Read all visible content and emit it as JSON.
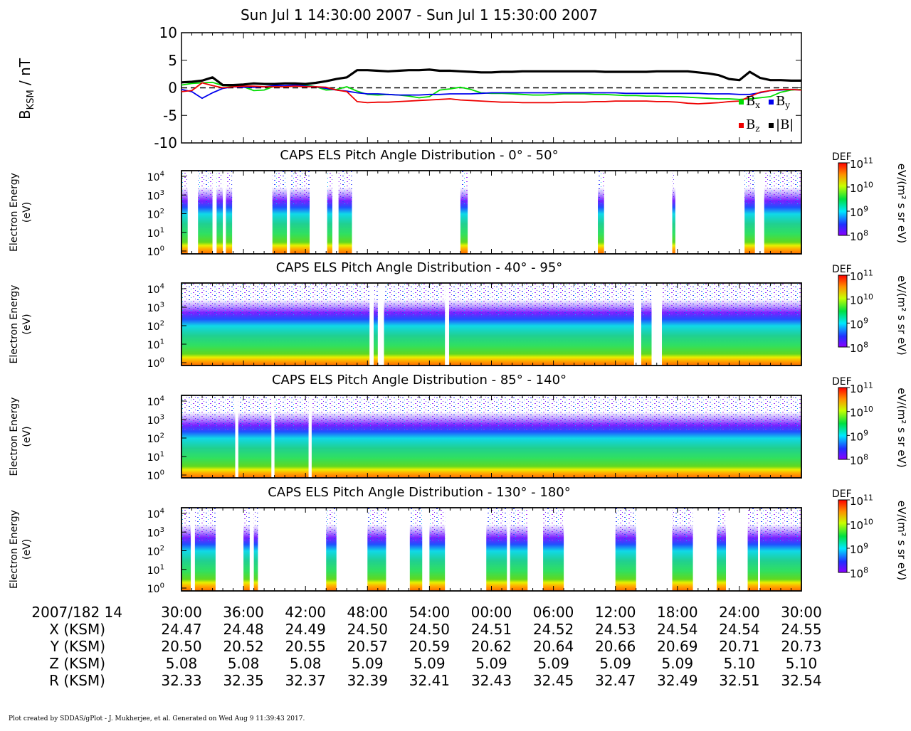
{
  "title": "Sun Jul 1 14:30:00 2007 - Sun Jul 1 15:30:00 2007",
  "footer": "Plot created by SDDAS/gPlot - J. Mukherjee, et al.  Generated on Wed Aug 9 11:39:43 2017.",
  "colors": {
    "bx": "#00dd00",
    "by": "#0000ee",
    "bz": "#ee0000",
    "bmag": "#000000"
  },
  "chart_data": [
    {
      "type": "line",
      "ylabel_main": "B",
      "ylabel_sub": "KSM",
      "ylabel_unit": " / nT",
      "ylim": [
        -10,
        10
      ],
      "yticks": [
        "10",
        "5",
        "0",
        "-5",
        "-10"
      ],
      "ytick_values": [
        10,
        5,
        0,
        -5,
        -10
      ],
      "x_minutes": [
        0,
        1,
        2,
        3,
        4,
        5,
        6,
        7,
        8,
        9,
        10,
        11,
        12,
        13,
        14,
        15,
        16,
        17,
        18,
        19,
        20,
        21,
        22,
        23,
        24,
        25,
        26,
        27,
        28,
        29,
        30,
        31,
        32,
        33,
        34,
        35,
        36,
        37,
        38,
        39,
        40,
        41,
        42,
        43,
        44,
        45,
        46,
        47,
        48,
        49,
        50,
        51,
        52,
        53,
        54,
        55,
        56,
        57,
        58,
        59,
        60
      ],
      "series": [
        {
          "name": "B",
          "sub": "x",
          "values": [
            0.5,
            0.8,
            0.9,
            1.0,
            0.4,
            0.3,
            0.2,
            -0.5,
            -0.4,
            0.3,
            0.3,
            0.6,
            0.5,
            0.2,
            -0.4,
            -0.3,
            0.2,
            -0.6,
            -1.2,
            -1.3,
            -1.2,
            -1.3,
            -1.5,
            -1.8,
            -1.6,
            -0.4,
            -0.2,
            0.1,
            -0.3,
            -0.9,
            -1.0,
            -1.0,
            -1.1,
            -1.2,
            -1.3,
            -1.3,
            -1.2,
            -1.1,
            -1.1,
            -1.1,
            -1.2,
            -1.2,
            -1.3,
            -1.4,
            -1.4,
            -1.5,
            -1.5,
            -1.6,
            -1.6,
            -1.7,
            -1.8,
            -1.9,
            -2.0,
            -2.0,
            -2.1,
            -2.0,
            -1.8,
            -1.6,
            -0.8,
            -0.4,
            -0.3
          ]
        },
        {
          "name": "B",
          "sub": "y",
          "values": [
            -0.3,
            -0.7,
            -1.9,
            -0.9,
            -0.1,
            0.2,
            0.1,
            0.1,
            0.2,
            0.4,
            0.4,
            0.5,
            0.3,
            0.2,
            -0.1,
            -0.4,
            -0.6,
            -0.9,
            -1.1,
            -1.1,
            -1.2,
            -1.3,
            -1.3,
            -1.3,
            -1.2,
            -1.2,
            -1.1,
            -1.1,
            -1.1,
            -1.0,
            -0.9,
            -0.9,
            -0.9,
            -0.9,
            -0.9,
            -0.9,
            -0.9,
            -0.9,
            -0.9,
            -0.9,
            -0.9,
            -0.9,
            -0.9,
            -1.0,
            -1.0,
            -1.0,
            -1.0,
            -1.0,
            -1.0,
            -1.0,
            -1.0,
            -1.1,
            -1.1,
            -1.1,
            -1.2,
            -1.2,
            -0.9,
            -0.5,
            -0.4,
            -0.3,
            -0.4
          ]
        },
        {
          "name": "B",
          "sub": "z",
          "values": [
            -0.7,
            -0.5,
            0.9,
            0.4,
            0.0,
            0.2,
            0.3,
            0.3,
            0.2,
            0.2,
            0.2,
            0.3,
            0.2,
            0.2,
            0.1,
            -0.4,
            -0.7,
            -2.5,
            -2.7,
            -2.6,
            -2.6,
            -2.5,
            -2.4,
            -2.3,
            -2.2,
            -2.1,
            -2.0,
            -2.2,
            -2.3,
            -2.4,
            -2.5,
            -2.6,
            -2.6,
            -2.7,
            -2.7,
            -2.7,
            -2.7,
            -2.6,
            -2.6,
            -2.6,
            -2.5,
            -2.5,
            -2.4,
            -2.4,
            -2.4,
            -2.4,
            -2.5,
            -2.5,
            -2.6,
            -2.8,
            -2.9,
            -2.8,
            -2.7,
            -2.5,
            -2.4,
            -1.6,
            -0.8,
            -0.5,
            -0.3,
            -0.3,
            -0.4
          ]
        },
        {
          "name": "|B|",
          "sub": "",
          "values": [
            1.0,
            1.1,
            1.3,
            1.9,
            0.5,
            0.5,
            0.6,
            0.8,
            0.7,
            0.7,
            0.8,
            0.8,
            0.7,
            0.9,
            1.2,
            1.6,
            1.9,
            3.2,
            3.2,
            3.1,
            3.0,
            3.1,
            3.2,
            3.2,
            3.3,
            3.1,
            3.1,
            3.0,
            2.9,
            2.8,
            2.8,
            2.9,
            2.9,
            3.0,
            3.0,
            3.0,
            3.0,
            3.0,
            3.0,
            3.0,
            3.0,
            2.9,
            2.9,
            2.9,
            2.9,
            2.9,
            3.0,
            3.0,
            3.0,
            3.0,
            2.8,
            2.6,
            2.3,
            1.6,
            1.4,
            2.9,
            1.8,
            1.4,
            1.4,
            1.3,
            1.3
          ]
        }
      ]
    },
    {
      "type": "heatmap",
      "title": "CAPS ELS Pitch Angle Distribution - 0° - 50°",
      "ylabel": [
        "Electron Energy",
        "(eV)"
      ],
      "cbar_label": "DEF",
      "cbar_unit": "eV/(m² s sr eV)",
      "coverage_minutes": [
        [
          0,
          0.6
        ],
        [
          1.6,
          3.0
        ],
        [
          3.4,
          4.0
        ],
        [
          4.3,
          4.9
        ],
        [
          8.8,
          10.2
        ],
        [
          10.5,
          12.4
        ],
        [
          14.1,
          14.6
        ],
        [
          15.2,
          16.5
        ],
        [
          27.0,
          27.7
        ],
        [
          40.3,
          40.9
        ],
        [
          47.5,
          47.8
        ],
        [
          54.5,
          55.5
        ],
        [
          56.4,
          60
        ]
      ]
    },
    {
      "type": "heatmap",
      "title": "CAPS ELS Pitch Angle Distribution - 40° - 95°",
      "ylabel": [
        "Electron Energy",
        "(eV)"
      ],
      "cbar_label": "DEF",
      "cbar_unit": "eV/(m² s sr eV)",
      "coverage_minutes": [
        [
          0,
          18.2
        ],
        [
          18.6,
          19.0
        ],
        [
          19.6,
          25.5
        ],
        [
          25.9,
          43.8
        ],
        [
          44.5,
          45.5
        ],
        [
          46.5,
          60
        ]
      ]
    },
    {
      "type": "heatmap",
      "title": "CAPS ELS Pitch Angle Distribution - 85° - 140°",
      "ylabel": [
        "Electron Energy",
        "(eV)"
      ],
      "cbar_label": "DEF",
      "cbar_unit": "eV/(m² s sr eV)",
      "coverage_minutes": [
        [
          0,
          5.2
        ],
        [
          5.5,
          8.7
        ],
        [
          9.0,
          12.3
        ],
        [
          12.6,
          60
        ]
      ]
    },
    {
      "type": "heatmap",
      "title": "CAPS ELS Pitch Angle Distribution - 130° - 180°",
      "ylabel": [
        "Electron Energy",
        "(eV)"
      ],
      "cbar_label": "DEF",
      "cbar_unit": "eV/(m² s sr eV)",
      "coverage_minutes": [
        [
          0,
          0.9
        ],
        [
          1.3,
          3.3
        ],
        [
          6.0,
          6.6
        ],
        [
          7.0,
          7.4
        ],
        [
          14.0,
          15.0
        ],
        [
          18.0,
          19.8
        ],
        [
          22.1,
          23.3
        ],
        [
          24.0,
          25.5
        ],
        [
          29.5,
          31.5
        ],
        [
          31.8,
          33.5
        ],
        [
          35.0,
          37.0
        ],
        [
          42.0,
          44.0
        ],
        [
          47.5,
          49.5
        ],
        [
          51.8,
          52.7
        ],
        [
          54.8,
          55.8
        ],
        [
          56.0,
          60
        ]
      ]
    }
  ],
  "colorbar_ticks": [
    {
      "base": "10",
      "exp": "11"
    },
    {
      "base": "10",
      "exp": "10"
    },
    {
      "base": "10",
      "exp": "9"
    },
    {
      "base": "10",
      "exp": "8"
    }
  ],
  "energy_ticks": [
    {
      "base": "10",
      "exp": "4"
    },
    {
      "base": "10",
      "exp": "3"
    },
    {
      "base": "10",
      "exp": "2"
    },
    {
      "base": "10",
      "exp": "1"
    },
    {
      "base": "10",
      "exp": "0"
    }
  ],
  "legend": {
    "bx": {
      "base": "B",
      "sub": "x"
    },
    "by": {
      "base": "B",
      "sub": "y"
    },
    "bz": {
      "base": "B",
      "sub": "z"
    },
    "bmag": {
      "base": "|B|",
      "sub": ""
    }
  },
  "ephemeris": {
    "date_label": "2007/182 14",
    "times": [
      "30:00",
      "36:00",
      "42:00",
      "48:00",
      "54:00",
      "00:00",
      "06:00",
      "12:00",
      "18:00",
      "24:00",
      "30:00"
    ],
    "rows": [
      {
        "label": "X (KSM)",
        "values": [
          "24.47",
          "24.48",
          "24.49",
          "24.50",
          "24.50",
          "24.51",
          "24.52",
          "24.53",
          "24.54",
          "24.54",
          "24.55"
        ]
      },
      {
        "label": "Y (KSM)",
        "values": [
          "20.50",
          "20.52",
          "20.55",
          "20.57",
          "20.59",
          "20.62",
          "20.64",
          "20.66",
          "20.69",
          "20.71",
          "20.73"
        ]
      },
      {
        "label": "Z (KSM)",
        "values": [
          "5.08",
          "5.08",
          "5.08",
          "5.09",
          "5.09",
          "5.09",
          "5.09",
          "5.09",
          "5.09",
          "5.10",
          "5.10"
        ]
      },
      {
        "label": "R (KSM)",
        "values": [
          "32.33",
          "32.35",
          "32.37",
          "32.39",
          "32.41",
          "32.43",
          "32.45",
          "32.47",
          "32.49",
          "32.51",
          "32.54"
        ]
      }
    ]
  }
}
